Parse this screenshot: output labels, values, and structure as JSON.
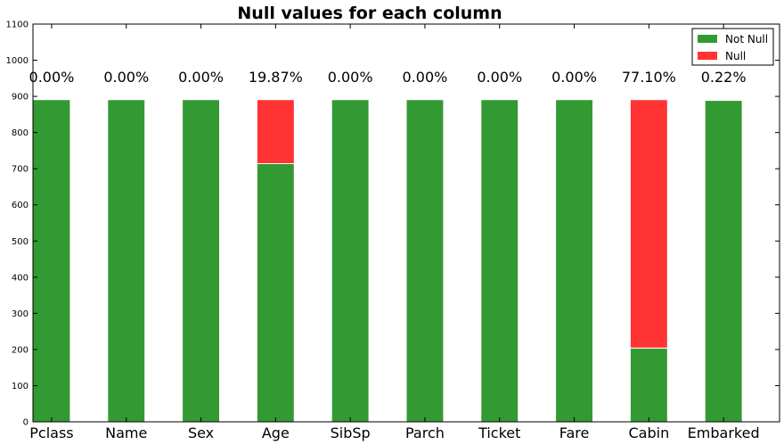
{
  "chart_data": {
    "type": "bar",
    "stacked": true,
    "title": "Null values for each column",
    "xlabel": "",
    "ylabel": "",
    "categories": [
      "Pclass",
      "Name",
      "Sex",
      "Age",
      "SibSp",
      "Parch",
      "Ticket",
      "Fare",
      "Cabin",
      "Embarked"
    ],
    "series": [
      {
        "name": "Not Null",
        "color": "#339933",
        "values": [
          891,
          891,
          891,
          714,
          891,
          891,
          891,
          891,
          204,
          889
        ]
      },
      {
        "name": "Null",
        "color": "#ff3333",
        "values": [
          0,
          0,
          0,
          177,
          0,
          0,
          0,
          0,
          687,
          2
        ]
      }
    ],
    "annotations": [
      "0.00%",
      "0.00%",
      "0.00%",
      "19.87%",
      "0.00%",
      "0.00%",
      "0.00%",
      "0.00%",
      "77.10%",
      "0.22%"
    ],
    "ylim": [
      0,
      1100
    ],
    "yticks": [
      0,
      100,
      200,
      300,
      400,
      500,
      600,
      700,
      800,
      900,
      1000,
      1100
    ],
    "legend_position": "top-right",
    "grid": false
  }
}
